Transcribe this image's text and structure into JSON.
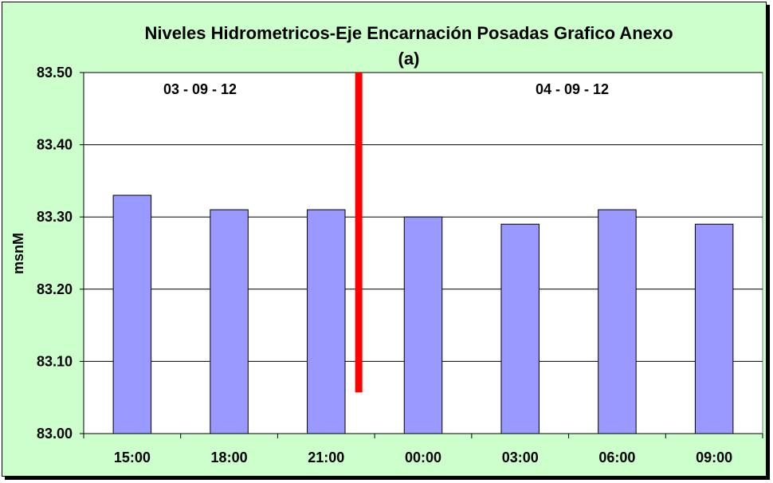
{
  "chart_data": {
    "type": "bar",
    "title": "Niveles Hidrometricos-Eje Encarnación Posadas Grafico Anexo",
    "subtitle": "(a)",
    "xlabel": "",
    "ylabel": "msnM",
    "ylim": [
      83.0,
      83.5
    ],
    "yticks": [
      "83.00",
      "83.10",
      "83.20",
      "83.30",
      "83.40",
      "83.50"
    ],
    "categories": [
      "15:00",
      "18:00",
      "21:00",
      "00:00",
      "03:00",
      "06:00",
      "09:00"
    ],
    "values": [
      83.33,
      83.31,
      83.31,
      83.3,
      83.29,
      83.31,
      83.29
    ],
    "grid": true,
    "legend": "none",
    "annotations": [
      {
        "text": "03 - 09 - 12"
      },
      {
        "text": "04 - 09 - 12"
      }
    ],
    "divider": {
      "between": [
        "21:00",
        "00:00"
      ],
      "y_from": 83.057,
      "y_to": 83.5,
      "color": "#ff0000"
    },
    "colors": {
      "bar": "#9999ff",
      "plot_background": "#ffffff",
      "chart_background": "#ccffcc",
      "divider": "#ff0000"
    }
  }
}
